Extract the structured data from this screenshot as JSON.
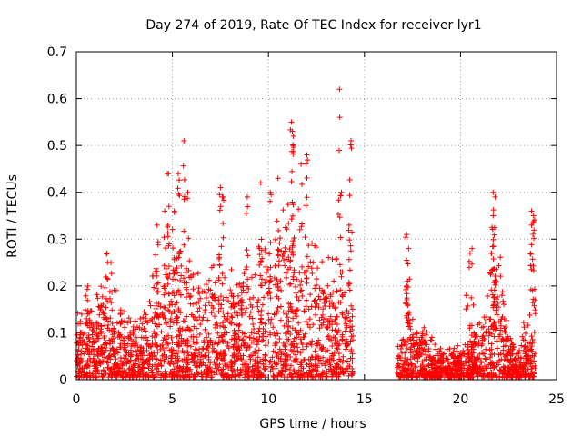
{
  "chart_data": {
    "type": "scatter",
    "title": "Day 274 of 2019, Rate Of TEC Index for receiver lyr1",
    "xlabel": "GPS time / hours",
    "ylabel": "ROTI / TECUs",
    "xlim": [
      0,
      25
    ],
    "ylim": [
      0,
      0.7
    ],
    "xticks": [
      "0",
      "5",
      "10",
      "15",
      "20",
      "25"
    ],
    "yticks": [
      "0",
      "0.1",
      "0.2",
      "0.3",
      "0.4",
      "0.5",
      "0.6",
      "0.7"
    ],
    "grid": true,
    "marker": "+",
    "marker_color": "#ff0000",
    "data_gap_hours": [
      14.4,
      16.7
    ],
    "series": [
      {
        "name": "ROTI",
        "envelope": {
          "hours": [
            0.0,
            0.5,
            1.0,
            1.5,
            2.0,
            2.5,
            3.0,
            3.5,
            4.0,
            4.5,
            5.0,
            5.5,
            6.0,
            6.5,
            7.0,
            7.5,
            8.0,
            8.5,
            9.0,
            9.5,
            10.0,
            10.5,
            11.0,
            11.5,
            12.0,
            12.5,
            13.0,
            13.5,
            14.0,
            14.4,
            16.7,
            17.0,
            17.5,
            18.0,
            18.5,
            19.0,
            19.5,
            20.0,
            20.5,
            21.0,
            21.5,
            22.0,
            22.5,
            23.0,
            23.5,
            23.9
          ],
          "typical": [
            0.08,
            0.12,
            0.1,
            0.14,
            0.12,
            0.1,
            0.08,
            0.1,
            0.15,
            0.18,
            0.2,
            0.19,
            0.15,
            0.14,
            0.16,
            0.17,
            0.16,
            0.15,
            0.18,
            0.2,
            0.22,
            0.25,
            0.24,
            0.23,
            0.22,
            0.19,
            0.17,
            0.16,
            0.15,
            0.15,
            0.05,
            0.06,
            0.09,
            0.08,
            0.06,
            0.05,
            0.04,
            0.04,
            0.06,
            0.09,
            0.12,
            0.18,
            0.07,
            0.05,
            0.09,
            0.12
          ]
        },
        "outliers": [
          [
            0.6,
            0.2
          ],
          [
            1.6,
            0.27
          ],
          [
            1.8,
            0.25
          ],
          [
            4.2,
            0.33
          ],
          [
            4.6,
            0.36
          ],
          [
            4.8,
            0.44
          ],
          [
            5.1,
            0.36
          ],
          [
            5.3,
            0.44
          ],
          [
            5.6,
            0.51
          ],
          [
            5.8,
            0.4
          ],
          [
            7.5,
            0.41
          ],
          [
            7.6,
            0.39
          ],
          [
            8.9,
            0.39
          ],
          [
            9.6,
            0.42
          ],
          [
            10.1,
            0.4
          ],
          [
            10.5,
            0.43
          ],
          [
            11.2,
            0.55
          ],
          [
            11.25,
            0.53
          ],
          [
            11.3,
            0.52
          ],
          [
            11.7,
            0.46
          ],
          [
            12.0,
            0.48
          ],
          [
            13.7,
            0.62
          ],
          [
            14.3,
            0.51
          ],
          [
            13.8,
            0.4
          ],
          [
            14.2,
            0.33
          ],
          [
            17.2,
            0.31
          ],
          [
            17.3,
            0.28
          ],
          [
            17.2,
            0.2
          ],
          [
            20.6,
            0.28
          ],
          [
            20.5,
            0.27
          ],
          [
            21.7,
            0.4
          ],
          [
            21.8,
            0.39
          ],
          [
            21.7,
            0.35
          ],
          [
            23.7,
            0.36
          ],
          [
            23.8,
            0.35
          ],
          [
            23.7,
            0.33
          ],
          [
            21.6,
            0.27
          ],
          [
            20.3,
            0.18
          ]
        ]
      }
    ]
  }
}
